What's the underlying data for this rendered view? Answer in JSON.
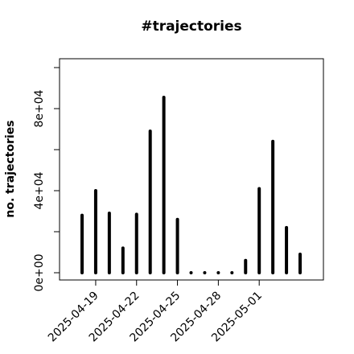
{
  "chart_data": {
    "type": "bar",
    "title": "#trajectories",
    "y_label": "no. trajectories",
    "x": [
      "2025-04-18",
      "2025-04-19",
      "2025-04-20",
      "2025-04-21",
      "2025-04-22",
      "2025-04-23",
      "2025-04-24",
      "2025-04-25",
      "2025-04-26",
      "2025-04-27",
      "2025-04-28",
      "2025-04-29",
      "2025-04-30",
      "2025-05-01",
      "2025-05-02",
      "2025-05-03",
      "2025-05-04"
    ],
    "values": [
      28000,
      40000,
      29000,
      12000,
      28500,
      69000,
      85500,
      26000,
      0,
      0,
      0,
      0,
      6000,
      41000,
      64000,
      22000,
      9000
    ],
    "color": "#000000",
    "xlim": [
      "2025-04-18",
      "2025-05-04"
    ],
    "xticks": [
      "2025-04-19",
      "2025-04-22",
      "2025-04-25",
      "2025-04-28",
      "2025-05-01"
    ],
    "ylim": [
      0,
      100000
    ],
    "yticks": [
      {
        "value": 0,
        "label": "0e+00"
      },
      {
        "value": 40000,
        "label": "4e+04"
      },
      {
        "value": 80000,
        "label": "8e+04"
      }
    ],
    "yminorticks": [
      20000,
      60000,
      100000
    ]
  }
}
